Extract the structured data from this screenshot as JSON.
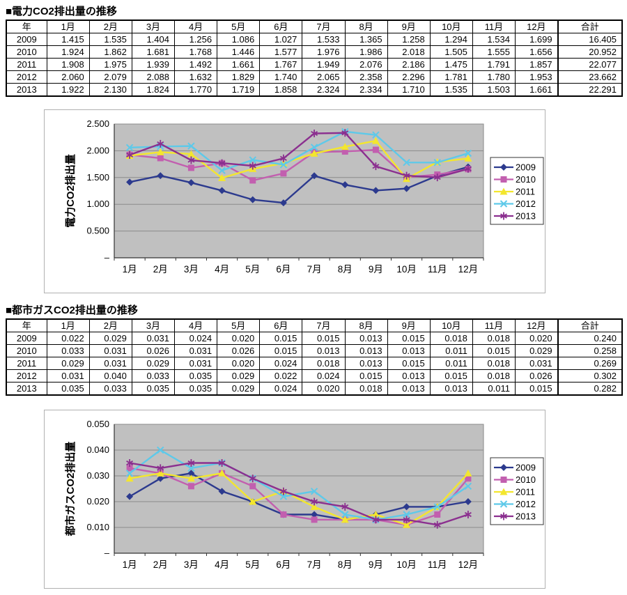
{
  "sections": [
    {
      "title": "■電力CO2排出量の推移",
      "table": {
        "headers": [
          "年",
          "1月",
          "2月",
          "3月",
          "4月",
          "5月",
          "6月",
          "7月",
          "8月",
          "9月",
          "10月",
          "11月",
          "12月",
          "合計"
        ],
        "rows": [
          [
            "2009",
            "1.415",
            "1.535",
            "1.404",
            "1.256",
            "1.086",
            "1.027",
            "1.533",
            "1.365",
            "1.258",
            "1.294",
            "1.534",
            "1.699",
            "16.405"
          ],
          [
            "2010",
            "1.924",
            "1.862",
            "1.681",
            "1.768",
            "1.446",
            "1.577",
            "1.976",
            "1.986",
            "2.018",
            "1.505",
            "1.555",
            "1.656",
            "20.952"
          ],
          [
            "2011",
            "1.908",
            "1.975",
            "1.939",
            "1.492",
            "1.661",
            "1.767",
            "1.949",
            "2.076",
            "2.186",
            "1.475",
            "1.791",
            "1.857",
            "22.077"
          ],
          [
            "2012",
            "2.060",
            "2.079",
            "2.088",
            "1.632",
            "1.829",
            "1.740",
            "2.065",
            "2.358",
            "2.296",
            "1.781",
            "1.780",
            "1.953",
            "23.662"
          ],
          [
            "2013",
            "1.922",
            "2.130",
            "1.824",
            "1.770",
            "1.719",
            "1.858",
            "2.324",
            "2.334",
            "1.710",
            "1.535",
            "1.503",
            "1.661",
            "22.291"
          ]
        ]
      }
    },
    {
      "title": "■都市ガスCO2排出量の推移",
      "table": {
        "headers": [
          "年",
          "1月",
          "2月",
          "3月",
          "4月",
          "5月",
          "6月",
          "7月",
          "8月",
          "9月",
          "10月",
          "11月",
          "12月",
          "合計"
        ],
        "rows": [
          [
            "2009",
            "0.022",
            "0.029",
            "0.031",
            "0.024",
            "0.020",
            "0.015",
            "0.015",
            "0.013",
            "0.015",
            "0.018",
            "0.018",
            "0.020",
            "0.240"
          ],
          [
            "2010",
            "0.033",
            "0.031",
            "0.026",
            "0.031",
            "0.026",
            "0.015",
            "0.013",
            "0.013",
            "0.013",
            "0.011",
            "0.015",
            "0.029",
            "0.258"
          ],
          [
            "2011",
            "0.029",
            "0.031",
            "0.029",
            "0.031",
            "0.020",
            "0.024",
            "0.018",
            "0.013",
            "0.015",
            "0.011",
            "0.018",
            "0.031",
            "0.269"
          ],
          [
            "2012",
            "0.031",
            "0.040",
            "0.033",
            "0.035",
            "0.029",
            "0.022",
            "0.024",
            "0.015",
            "0.013",
            "0.015",
            "0.018",
            "0.026",
            "0.302"
          ],
          [
            "2013",
            "0.035",
            "0.033",
            "0.035",
            "0.035",
            "0.029",
            "0.024",
            "0.020",
            "0.018",
            "0.013",
            "0.013",
            "0.011",
            "0.015",
            "0.282"
          ]
        ]
      }
    }
  ],
  "chart_data": [
    {
      "type": "line",
      "title": "",
      "xlabel": "",
      "ylabel": "電力CO2排出量",
      "categories": [
        "1月",
        "2月",
        "3月",
        "4月",
        "5月",
        "6月",
        "7月",
        "8月",
        "9月",
        "10月",
        "11月",
        "12月"
      ],
      "series": [
        {
          "name": "2009",
          "marker": "diamond",
          "color": "#2C3A8E",
          "values": [
            1.415,
            1.535,
            1.404,
            1.256,
            1.086,
            1.027,
            1.533,
            1.365,
            1.258,
            1.294,
            1.534,
            1.699
          ]
        },
        {
          "name": "2010",
          "marker": "square",
          "color": "#C25FAF",
          "values": [
            1.924,
            1.862,
            1.681,
            1.768,
            1.446,
            1.577,
            1.976,
            1.986,
            2.018,
            1.505,
            1.555,
            1.656
          ]
        },
        {
          "name": "2011",
          "marker": "triangle",
          "color": "#F3E62E",
          "values": [
            1.908,
            1.975,
            1.939,
            1.492,
            1.661,
            1.767,
            1.949,
            2.076,
            2.186,
            1.475,
            1.791,
            1.857
          ]
        },
        {
          "name": "2012",
          "marker": "x",
          "color": "#5EC9E9",
          "values": [
            2.06,
            2.079,
            2.088,
            1.632,
            1.829,
            1.74,
            2.065,
            2.358,
            2.296,
            1.781,
            1.78,
            1.953
          ]
        },
        {
          "name": "2013",
          "marker": "asterisk",
          "color": "#8B2F8F",
          "values": [
            1.922,
            2.13,
            1.824,
            1.77,
            1.719,
            1.858,
            2.324,
            2.334,
            1.71,
            1.535,
            1.503,
            1.661
          ]
        }
      ],
      "ylim": [
        0,
        2.5
      ],
      "ytick_step": 0.5,
      "ytick_labels": [
        "–",
        "0.500",
        "1.000",
        "1.500",
        "2.000",
        "2.500"
      ],
      "grid": true,
      "legend_position": "right",
      "plot_bg": "#c0c0c0",
      "grid_color": "#8a8a8a"
    },
    {
      "type": "line",
      "title": "",
      "xlabel": "",
      "ylabel": "都市ガスCO2排出量",
      "categories": [
        "1月",
        "2月",
        "3月",
        "4月",
        "5月",
        "6月",
        "7月",
        "8月",
        "9月",
        "10月",
        "11月",
        "12月"
      ],
      "series": [
        {
          "name": "2009",
          "marker": "diamond",
          "color": "#2C3A8E",
          "values": [
            0.022,
            0.029,
            0.031,
            0.024,
            0.02,
            0.015,
            0.015,
            0.013,
            0.015,
            0.018,
            0.018,
            0.02
          ]
        },
        {
          "name": "2010",
          "marker": "square",
          "color": "#C25FAF",
          "values": [
            0.033,
            0.031,
            0.026,
            0.031,
            0.026,
            0.015,
            0.013,
            0.013,
            0.013,
            0.011,
            0.015,
            0.029
          ]
        },
        {
          "name": "2011",
          "marker": "triangle",
          "color": "#F3E62E",
          "values": [
            0.029,
            0.031,
            0.029,
            0.031,
            0.02,
            0.024,
            0.018,
            0.013,
            0.015,
            0.011,
            0.018,
            0.031
          ]
        },
        {
          "name": "2012",
          "marker": "x",
          "color": "#5EC9E9",
          "values": [
            0.031,
            0.04,
            0.033,
            0.035,
            0.029,
            0.022,
            0.024,
            0.015,
            0.013,
            0.015,
            0.018,
            0.026
          ]
        },
        {
          "name": "2013",
          "marker": "asterisk",
          "color": "#8B2F8F",
          "values": [
            0.035,
            0.033,
            0.035,
            0.035,
            0.029,
            0.024,
            0.02,
            0.018,
            0.013,
            0.013,
            0.011,
            0.015
          ]
        }
      ],
      "ylim": [
        0,
        0.05
      ],
      "ytick_step": 0.01,
      "ytick_labels": [
        "–",
        "0.010",
        "0.020",
        "0.030",
        "0.040",
        "0.050"
      ],
      "grid": true,
      "legend_position": "right",
      "plot_bg": "#c0c0c0",
      "grid_color": "#8a8a8a"
    }
  ]
}
